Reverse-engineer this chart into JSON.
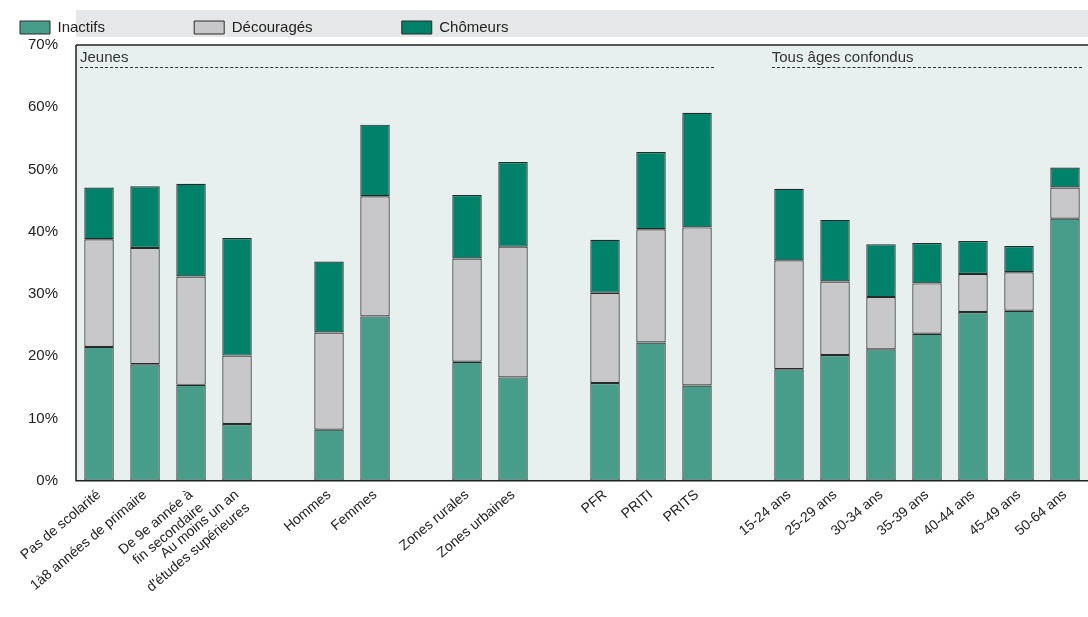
{
  "chart_data": {
    "type": "bar",
    "stacked": true,
    "legend": "top",
    "categories": [
      "Pas de scolarité",
      "1à8 années de primaire",
      "De 9e année à\nfin secondaire",
      "Au moins un an\nd'études supérieures",
      null,
      "Hommes",
      "Femmes",
      null,
      "Zones rurales",
      "Zones urbaines",
      null,
      "PFR",
      "PRITI",
      "PRITS",
      null,
      "15-24 ans",
      "25-29 ans",
      "30-34 ans",
      "35-39 ans",
      "40-44 ans",
      "45-49 ans",
      "50-64 ans"
    ],
    "series": [
      {
        "name": "Inactifs",
        "color": "#479c8a",
        "values": [
          21.5,
          18.7,
          15.4,
          9.1,
          null,
          8.2,
          26.4,
          null,
          19.1,
          16.6,
          null,
          15.7,
          22.2,
          15.3,
          null,
          17.9,
          20.2,
          21.1,
          23.6,
          27.1,
          27.3,
          42.1
        ]
      },
      {
        "name": "Découragés",
        "color": "#c8c8ca",
        "values": [
          17.3,
          18.7,
          17.4,
          11.0,
          null,
          15.6,
          19.3,
          null,
          16.6,
          21.0,
          null,
          14.5,
          18.2,
          25.4,
          null,
          17.5,
          11.8,
          8.4,
          8.1,
          6.1,
          6.2,
          5.0
        ]
      },
      {
        "name": "Chômeurs",
        "color": "#00826a",
        "values": [
          8.3,
          9.9,
          14.9,
          18.9,
          null,
          11.4,
          11.5,
          null,
          10.2,
          13.6,
          null,
          8.5,
          12.4,
          18.4,
          null,
          11.5,
          9.9,
          8.5,
          6.5,
          5.3,
          4.2,
          3.2
        ]
      }
    ],
    "ylim": [
      0,
      70
    ],
    "yticks": [
      {
        "value": 0,
        "label": "0%"
      },
      {
        "value": 10,
        "label": "10%"
      },
      {
        "value": 20,
        "label": "20%"
      },
      {
        "value": 30,
        "label": "30%"
      },
      {
        "value": 40,
        "label": "40%"
      },
      {
        "value": 50,
        "label": "50%"
      },
      {
        "value": 60,
        "label": "60%"
      },
      {
        "value": 70,
        "label": "70%"
      }
    ],
    "annotations": [
      "Jeunes",
      "Tous âges confondus"
    ]
  }
}
